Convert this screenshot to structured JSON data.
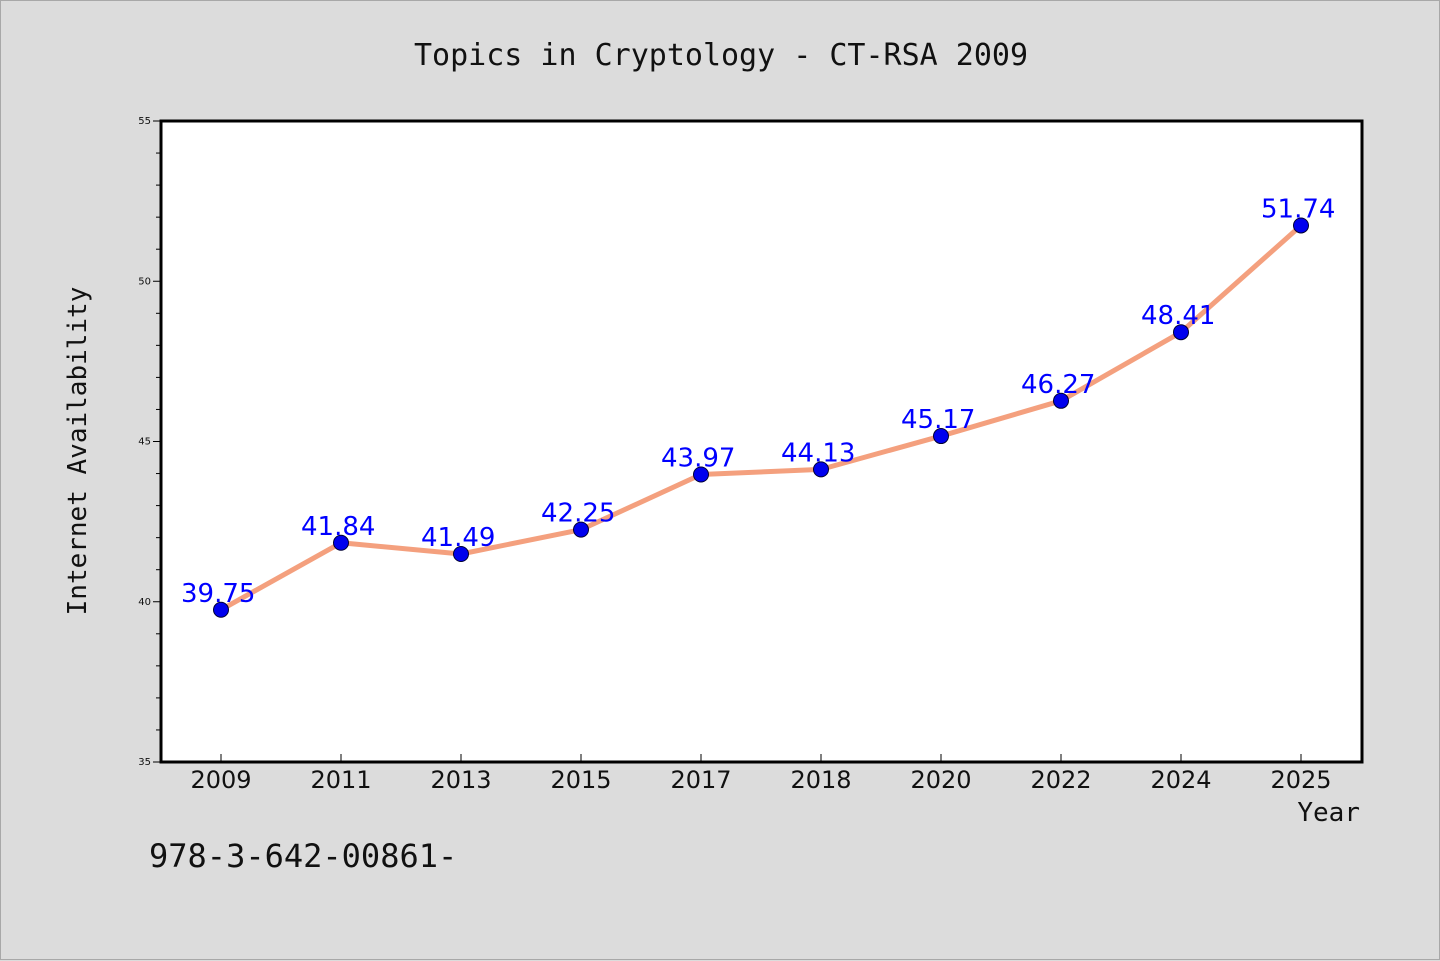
{
  "chart_data": {
    "type": "line",
    "title": "Topics in Cryptology - CT-RSA 2009",
    "xlabel": "Year",
    "ylabel": "Internet Availability",
    "categories": [
      "2009",
      "2011",
      "2013",
      "2015",
      "2017",
      "2018",
      "2020",
      "2022",
      "2024",
      "2025"
    ],
    "series": [
      {
        "values": [
          39.75,
          41.84,
          41.49,
          42.25,
          43.97,
          44.13,
          45.17,
          46.27,
          48.41,
          51.74
        ],
        "line_color": "#f4a07e",
        "marker_color": "#0000ee"
      }
    ],
    "data_labels": [
      "39.75",
      "41.84",
      "41.49",
      "42.25",
      "43.97",
      "44.13",
      "45.17",
      "46.27",
      "48.41",
      "51.74"
    ],
    "ylim": [
      35,
      55
    ],
    "yticks": [
      "35",
      "40",
      "45",
      "50",
      "55"
    ],
    "grid": false,
    "legend": "none",
    "colors": {
      "background": "#dcdcdc",
      "plot_background": "#ffffff",
      "data_label": "#0000ff"
    }
  },
  "footnote": "978-3-642-00861-"
}
